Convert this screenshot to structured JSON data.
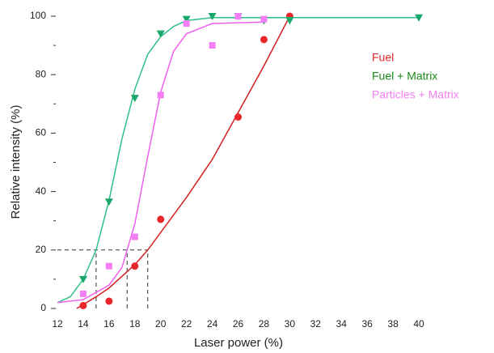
{
  "chart_data": {
    "type": "scatter",
    "xlabel": "Laser power (%)",
    "ylabel": "Relative intensity (%)",
    "xlim": [
      12,
      40
    ],
    "xticks": [
      12,
      14,
      16,
      18,
      20,
      22,
      24,
      26,
      28,
      30,
      32,
      34,
      36,
      38,
      40
    ],
    "ylim": [
      0,
      100
    ],
    "yticks": [
      0,
      20,
      40,
      60,
      80,
      100
    ],
    "yminor": [
      10,
      30,
      50,
      70,
      90
    ],
    "guides": {
      "y": 20,
      "x": [
        15,
        17.4,
        19
      ]
    },
    "series": [
      {
        "name": "Fuel",
        "color": "#e8262b",
        "label_color": "#e8262b",
        "line_color": "#d42020",
        "marker": "circle",
        "x": [
          14,
          16,
          18,
          20,
          26,
          28,
          30
        ],
        "values": [
          1,
          2.5,
          14.5,
          30.5,
          65.5,
          92,
          100
        ],
        "fit_x": [
          13.5,
          15,
          16,
          17,
          18,
          19,
          20,
          22,
          24,
          26,
          28,
          30
        ],
        "fit_y": [
          0,
          4,
          7,
          11,
          15,
          20,
          26,
          38,
          51,
          67,
          83,
          100
        ]
      },
      {
        "name": "Fuel + Matrix",
        "color": "#1aa86a",
        "label_color": "#1a8a1a",
        "line_color": "#2ebf8a",
        "marker": "triangle-down",
        "x": [
          14,
          16,
          18,
          20,
          22,
          24,
          26,
          28,
          30,
          40
        ],
        "values": [
          10,
          36.5,
          72,
          94,
          99,
          100,
          100,
          98.5,
          98.5,
          99.5
        ],
        "fit_x": [
          12,
          13,
          14,
          15,
          16,
          17,
          18,
          19,
          20,
          21,
          22,
          24,
          40
        ],
        "fit_y": [
          2,
          4,
          10,
          20,
          37,
          58,
          75,
          87,
          93,
          96.5,
          98.5,
          99.5,
          99.5
        ]
      },
      {
        "name": "Particles + Matrix",
        "color": "#f57ef5",
        "label_color": "#f57ef5",
        "line_color": "#f060f0",
        "marker": "square",
        "x": [
          14,
          16,
          18,
          20,
          22,
          24,
          26,
          28
        ],
        "values": [
          5,
          14.5,
          24.5,
          73,
          97.5,
          90,
          100,
          99
        ],
        "fit_x": [
          12,
          14,
          16,
          17,
          17.4,
          18,
          19,
          20,
          21,
          22,
          24,
          28
        ],
        "fit_y": [
          2,
          3,
          8,
          14,
          20,
          29,
          52,
          74,
          88,
          94,
          97.5,
          98
        ]
      }
    ]
  }
}
